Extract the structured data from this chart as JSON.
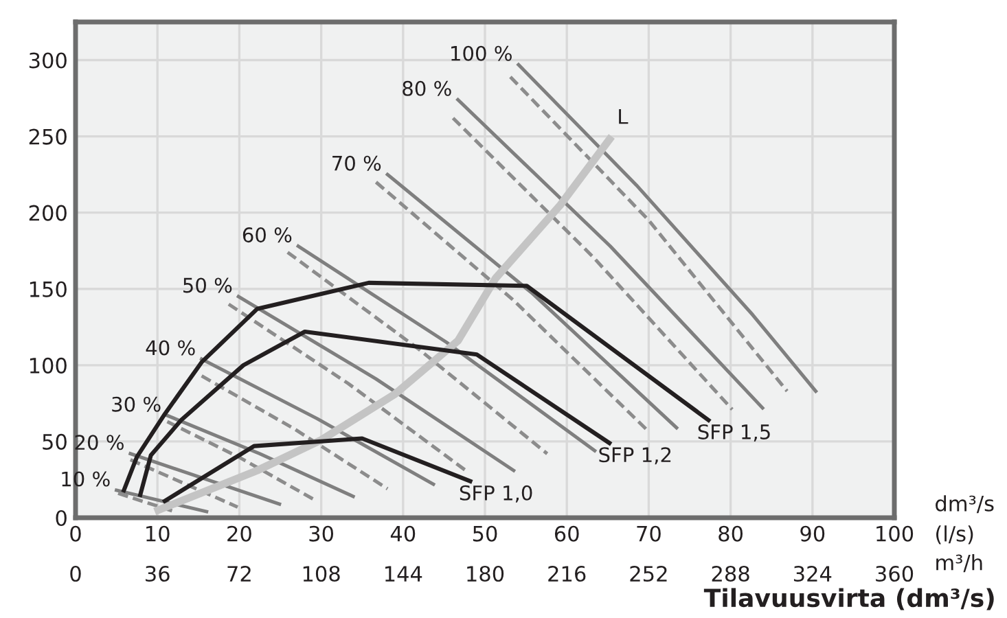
{
  "chart_data": {
    "type": "line",
    "xlabel": "Tilavuusvirta (dm³/s)",
    "x2label": "m³/h",
    "xlim": [
      0,
      100
    ],
    "xticks": [
      0,
      10,
      20,
      30,
      40,
      50,
      60,
      70,
      80,
      90,
      100
    ],
    "x2lim": [
      0,
      360
    ],
    "x2ticks": [
      0,
      36,
      72,
      108,
      144,
      180,
      216,
      252,
      288,
      324,
      360
    ],
    "ylim": [
      0,
      325
    ],
    "yticks": [
      0,
      50,
      100,
      150,
      200,
      250,
      300
    ],
    "grid": true,
    "marker": "none",
    "series": [
      {
        "name": "100 %",
        "color": "#7f7f7f",
        "line_style": "solid",
        "x": [
          54.1,
          68.5,
          82.7,
          90.4
        ],
        "values": [
          297,
          218,
          133,
          83
        ]
      },
      {
        "color": "#8c8c8c",
        "line_style": "dashed",
        "x": [
          53.1,
          70,
          86.9
        ],
        "values": [
          289,
          195,
          83
        ]
      },
      {
        "name": "80 %",
        "color": "#7f7f7f",
        "line_style": "solid",
        "x": [
          46.7,
          65.3,
          83.9
        ],
        "values": [
          274,
          178,
          72
        ]
      },
      {
        "color": "#8c8c8c",
        "line_style": "dashed",
        "x": [
          46.1,
          63.2,
          80.2
        ],
        "values": [
          262,
          171,
          71
        ]
      },
      {
        "name": "70 %",
        "color": "#7f7f7f",
        "line_style": "solid",
        "x": [
          38.1,
          55.8,
          73.4
        ],
        "values": [
          225,
          147,
          59
        ]
      },
      {
        "color": "#8c8c8c",
        "line_style": "dashed",
        "x": [
          36.7,
          53.4,
          70.1
        ],
        "values": [
          220,
          143,
          56
        ]
      },
      {
        "name": "60 %",
        "color": "#7f7f7f",
        "line_style": "solid",
        "x": [
          27.2,
          45.3,
          63.4
        ],
        "values": [
          178,
          115,
          44
        ]
      },
      {
        "color": "#8c8c8c",
        "line_style": "dashed",
        "x": [
          25.9,
          41.8,
          57.6
        ],
        "values": [
          174,
          111,
          42
        ]
      },
      {
        "name": "50 %",
        "color": "#7f7f7f",
        "line_style": "solid",
        "x": [
          19.9,
          36.7,
          53.5
        ],
        "values": [
          145,
          91,
          31
        ]
      },
      {
        "color": "#8c8c8c",
        "line_style": "dashed",
        "x": [
          18.7,
          33.3,
          47.9
        ],
        "values": [
          140,
          88,
          30
        ]
      },
      {
        "name": "40 %",
        "color": "#7f7f7f",
        "line_style": "solid",
        "x": [
          15.4,
          29.5,
          43.7
        ],
        "values": [
          104,
          65,
          22
        ]
      },
      {
        "color": "#8c8c8c",
        "line_style": "dashed",
        "x": [
          15.4,
          26.8,
          38.1
        ],
        "values": [
          93,
          58,
          19
        ]
      },
      {
        "name": "30 %",
        "color": "#7f7f7f",
        "line_style": "solid",
        "x": [
          11.2,
          22.5,
          33.9
        ],
        "values": [
          67,
          42,
          14
        ]
      },
      {
        "color": "#8c8c8c",
        "line_style": "dashed",
        "x": [
          11.2,
          20.2,
          29.1
        ],
        "values": [
          63,
          39,
          12
        ]
      },
      {
        "name": "20 %",
        "color": "#7f7f7f",
        "line_style": "solid",
        "x": [
          6.7,
          24.9
        ],
        "values": [
          42,
          9
        ]
      },
      {
        "color": "#8c8c8c",
        "line_style": "dashed",
        "x": [
          6.7,
          19.8
        ],
        "values": [
          38,
          7
        ]
      },
      {
        "name": "10 %",
        "color": "#7f7f7f",
        "line_style": "solid",
        "x": [
          5.0,
          16.0
        ],
        "values": [
          18,
          4
        ]
      },
      {
        "color": "#8c8c8c",
        "line_style": "dashed",
        "x": [
          5.2,
          12.1
        ],
        "values": [
          16,
          4
        ]
      },
      {
        "name": "L",
        "color": "#c4c4c4",
        "line_style": "solid",
        "x": [
          10.1,
          22.2,
          30,
          39,
          46.7,
          51.3,
          59.2,
          65.2
        ],
        "values": [
          5,
          31,
          51,
          81,
          116,
          157,
          205,
          248
        ]
      },
      {
        "name": "SFP 1,5",
        "color": "#231f20",
        "line_style": "solid",
        "x": [
          5.9,
          7.5,
          10.9,
          15.4,
          22.2,
          35.8,
          55.1,
          77.3
        ],
        "values": [
          18,
          40,
          68,
          102,
          137,
          154,
          152,
          64
        ]
      },
      {
        "name": "SFP 1,2",
        "color": "#231f20",
        "line_style": "solid",
        "x": [
          7.9,
          9.2,
          12.9,
          20.5,
          28.0,
          49.0,
          65.2
        ],
        "values": [
          15,
          41,
          64,
          100,
          122,
          107,
          49
        ]
      },
      {
        "name": "SFP 1,0",
        "color": "#231f20",
        "line_style": "solid",
        "x": [
          10.9,
          21.8,
          35.0,
          48.2
        ],
        "values": [
          11,
          47,
          52,
          24
        ]
      }
    ],
    "annotations": [
      "dm³/s",
      "(l/s)"
    ]
  }
}
